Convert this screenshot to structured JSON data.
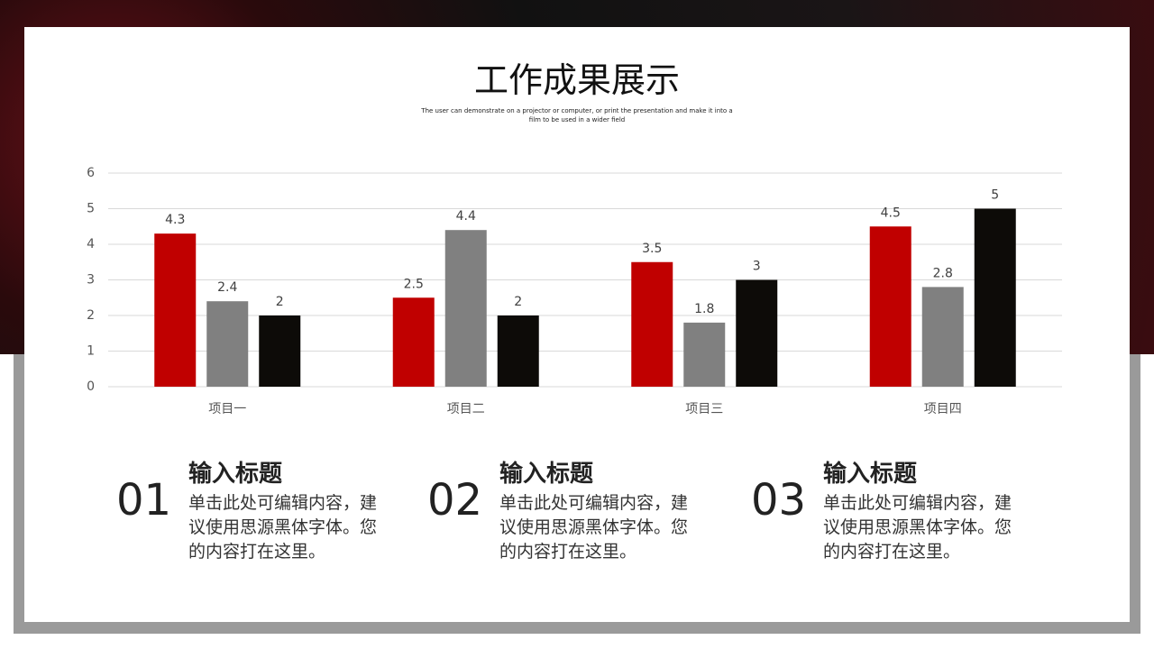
{
  "chart_data": {
    "type": "bar",
    "title": "工作成果展示",
    "subtitle": "The user can demonstrate on a projector or computer, or print the presentation and make it into a film to be used in a wider field",
    "categories": [
      "项目一",
      "项目二",
      "项目三",
      "项目四"
    ],
    "series": [
      {
        "color": "#c00000",
        "values": [
          4.3,
          2.5,
          3.5,
          4.5
        ]
      },
      {
        "color": "#808080",
        "values": [
          2.4,
          4.4,
          1.8,
          2.8
        ]
      },
      {
        "color": "#0d0b08",
        "values": [
          2,
          2,
          3,
          5
        ]
      }
    ],
    "ylim": [
      0,
      6
    ],
    "yticks": [
      0,
      1,
      2,
      3,
      4,
      5,
      6
    ],
    "grid": true
  },
  "items": [
    {
      "number": "01",
      "heading": "输入标题",
      "body": "单击此处可编辑内容，建议使用思源黑体字体。您的内容打在这里。"
    },
    {
      "number": "02",
      "heading": "输入标题",
      "body": "单击此处可编辑内容，建议使用思源黑体字体。您的内容打在这里。"
    },
    {
      "number": "03",
      "heading": "输入标题",
      "body": "单击此处可编辑内容，建议使用思源黑体字体。您的内容打在这里。"
    }
  ]
}
